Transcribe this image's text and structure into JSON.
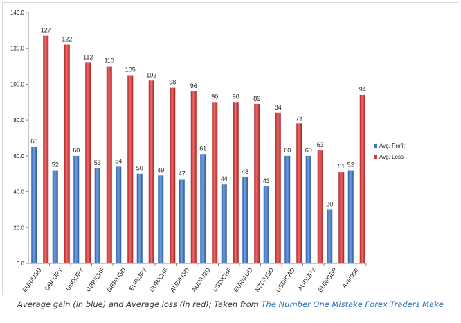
{
  "chart_data": {
    "type": "bar",
    "title": "",
    "xlabel": "",
    "ylabel": "",
    "ylim": [
      0,
      140
    ],
    "yticks": [
      "0.0",
      "20.0",
      "40.0",
      "60.0",
      "80.0",
      "100.0",
      "120.0",
      "140.0"
    ],
    "grid": false,
    "legend_position": "right",
    "categories": [
      "EUR/USD",
      "GBP/JPY",
      "USD/JPY",
      "GBP/CHF",
      "GBP/USD",
      "EUR/JPY",
      "EUR/CHF",
      "AUD/USD",
      "AUD/NZD",
      "USD/CHF",
      "EUR/AUD",
      "NZD/USD",
      "USD/CAD",
      "AUD/JPY",
      "EUR/GBP",
      "Average"
    ],
    "series": [
      {
        "name": "Avg. Profit",
        "color": "#3d73c2",
        "values": [
          65,
          52,
          60,
          53,
          54,
          50,
          49,
          47,
          61,
          44,
          48,
          43,
          60,
          60,
          30,
          52
        ]
      },
      {
        "name": "Avg. Loss",
        "color": "#d23b3b",
        "values": [
          127,
          122,
          112,
          110,
          105,
          102,
          98,
          96,
          90,
          90,
          89,
          84,
          78,
          63,
          51,
          94
        ]
      }
    ]
  },
  "caption": {
    "text": "Average gain (in blue) and Average loss (in red); Taken from ",
    "link_text": "The Number One Mistake Forex Traders Make"
  }
}
